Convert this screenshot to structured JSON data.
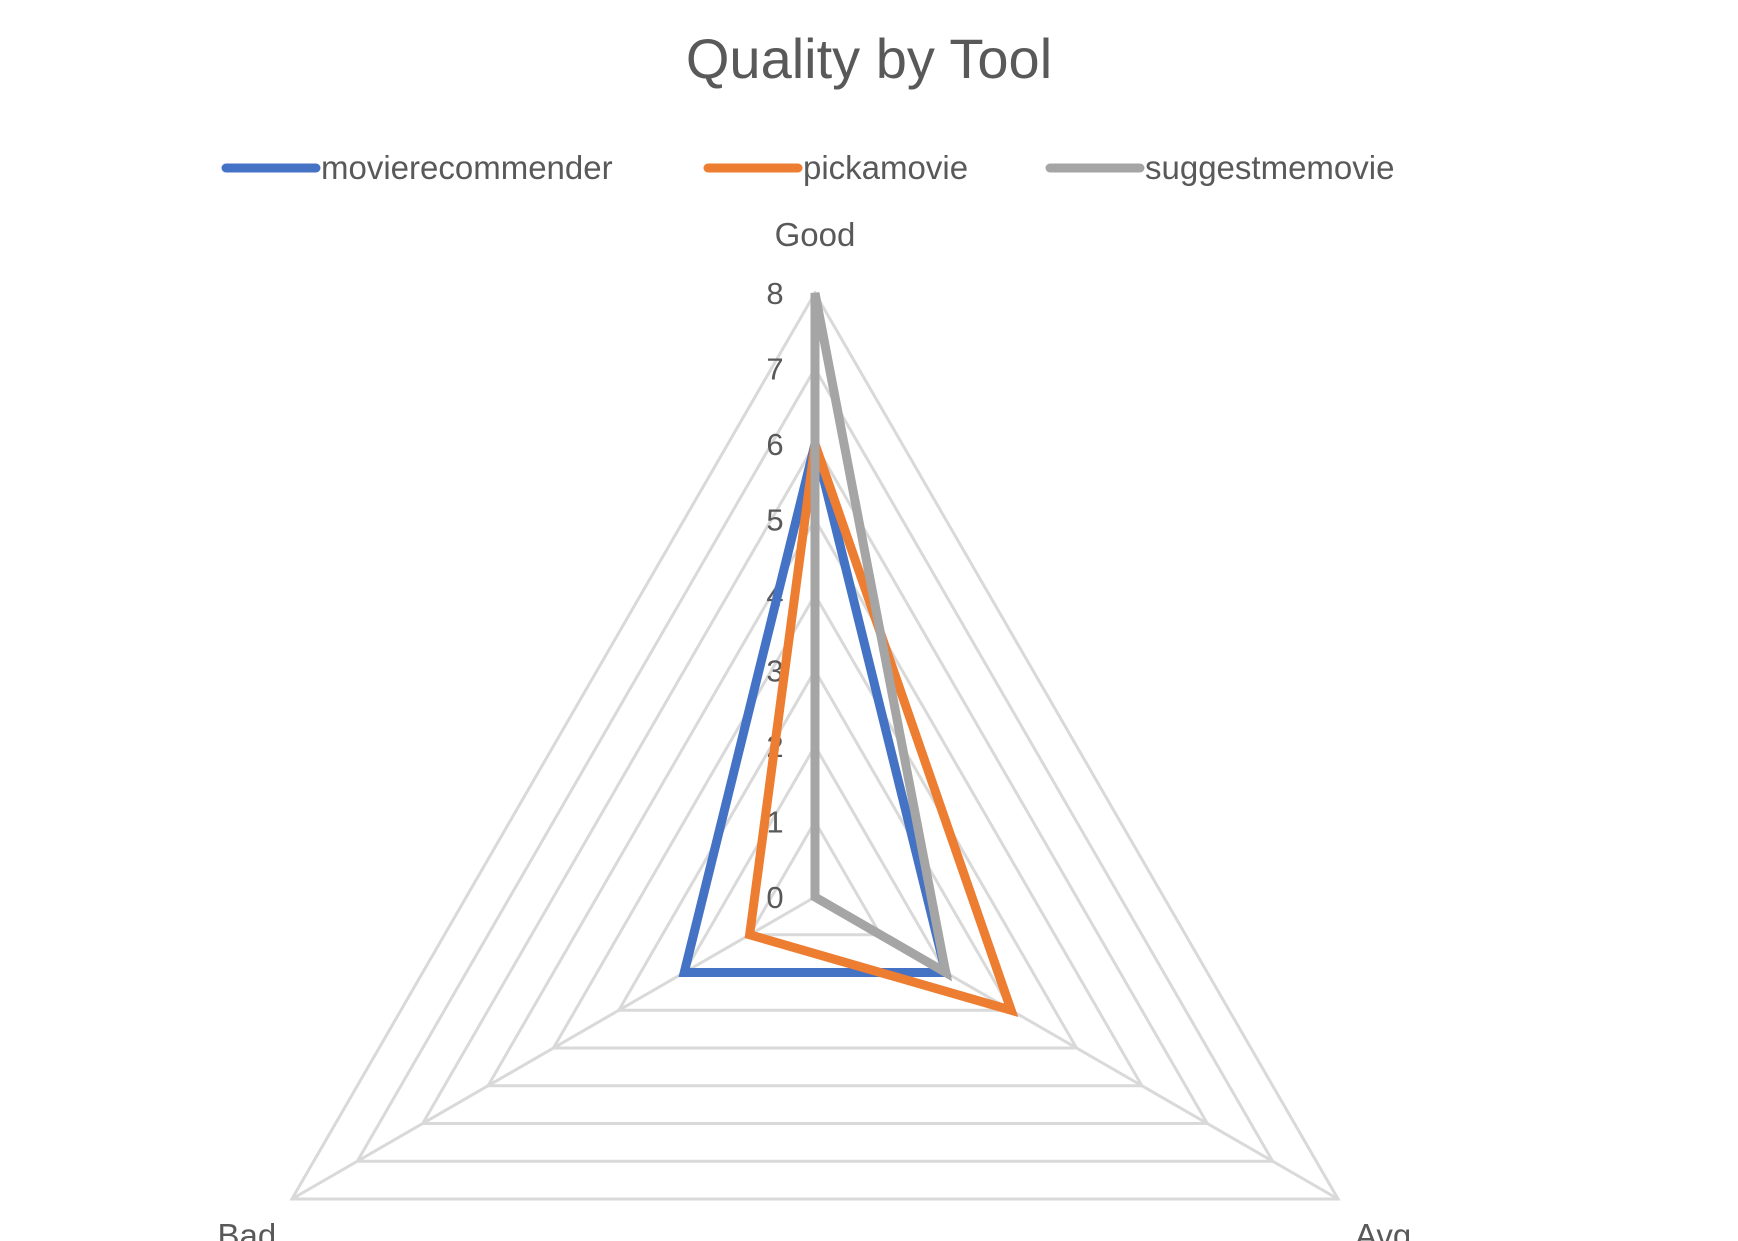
{
  "chart_data": {
    "type": "radar",
    "title": "Quality by Tool",
    "categories": [
      "Good",
      "Avg",
      "Bad"
    ],
    "rlim": [
      0,
      8
    ],
    "ticks": [
      "0",
      "1",
      "2",
      "3",
      "4",
      "5",
      "6",
      "7",
      "8"
    ],
    "legend_position": "top",
    "grid": true,
    "series": [
      {
        "name": "movierecommender",
        "color": "#4472C4",
        "values": [
          6,
          2,
          2
        ]
      },
      {
        "name": "pickamovie",
        "color": "#ED7D31",
        "values": [
          6,
          3,
          1
        ]
      },
      {
        "name": "suggestmemovie",
        "color": "#A5A5A5",
        "values": [
          8,
          2,
          0
        ]
      }
    ]
  }
}
